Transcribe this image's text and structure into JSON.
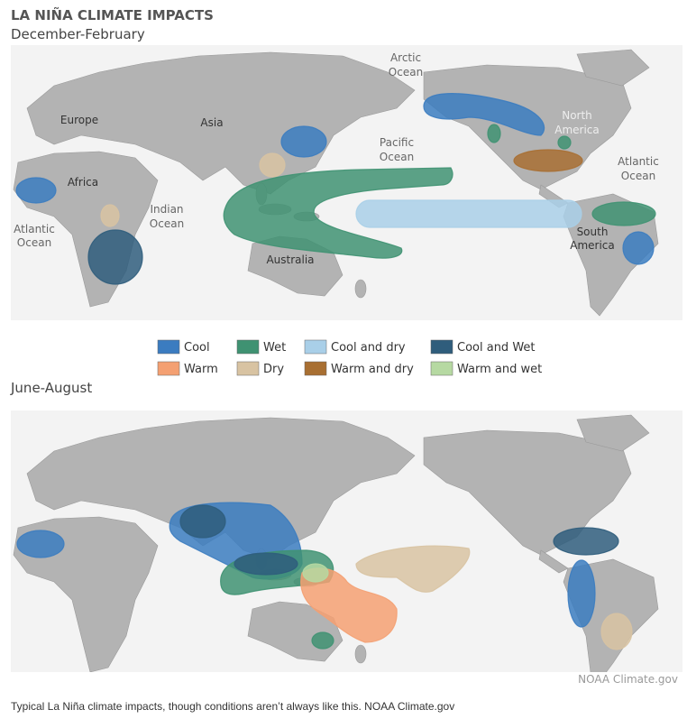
{
  "title": "LA NIÑA CLIMATE IMPACTS",
  "panels": [
    {
      "season": "December-February",
      "labels": [
        [
          "Arctic",
          "Ocean"
        ],
        [
          "Europe"
        ],
        [
          "Asia"
        ],
        [
          "Pacific",
          "Ocean"
        ],
        [
          "North",
          "America"
        ],
        [
          "Atlantic",
          "Ocean"
        ],
        [
          "Africa"
        ],
        [
          "Indian",
          "Ocean"
        ],
        [
          "Atlantic",
          "Ocean"
        ],
        [
          "Australia"
        ],
        [
          "South",
          "America"
        ]
      ]
    },
    {
      "season": "June-August"
    }
  ],
  "legend": [
    {
      "label": "Cool",
      "color": "#3b7cc0"
    },
    {
      "label": "Wet",
      "color": "#3f9272"
    },
    {
      "label": "Cool and dry",
      "color": "#a9cfe8"
    },
    {
      "label": "Cool and Wet",
      "color": "#2f5d7c"
    },
    {
      "label": "Warm",
      "color": "#f4a072"
    },
    {
      "label": "Dry",
      "color": "#d8c3a2"
    },
    {
      "label": "Warm and dry",
      "color": "#a86f32"
    },
    {
      "label": "Warm and wet",
      "color": "#b6d9a2"
    }
  ],
  "credit": "NOAA Climate.gov",
  "caption": "Typical La Niña climate impacts, though conditions aren’t always like this. NOAA Climate.gov"
}
